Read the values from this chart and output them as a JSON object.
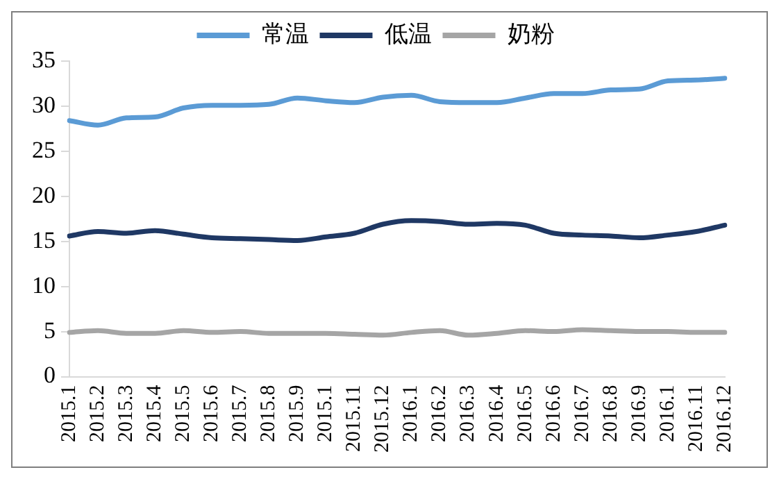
{
  "chart_data": {
    "type": "line",
    "categories": [
      "2015.1",
      "2015.2",
      "2015.3",
      "2015.4",
      "2015.5",
      "2015.6",
      "2015.7",
      "2015.8",
      "2015.9",
      "2015.1",
      "2015.11",
      "2015.12",
      "2016.1",
      "2016.2",
      "2016.3",
      "2016.4",
      "2016.5",
      "2016.6",
      "2016.7",
      "2016.8",
      "2016.9",
      "2016.1",
      "2016.11",
      "2016.12"
    ],
    "series": [
      {
        "name": "常温",
        "color": "#5b9bd5",
        "values": [
          28.4,
          27.9,
          28.7,
          28.8,
          29.8,
          30.1,
          30.1,
          30.2,
          30.9,
          30.6,
          30.4,
          31.0,
          31.2,
          30.5,
          30.4,
          30.4,
          30.9,
          31.4,
          31.4,
          31.8,
          31.9,
          32.8,
          32.9,
          33.1
        ]
      },
      {
        "name": "低温",
        "color": "#1f3864",
        "values": [
          15.6,
          16.1,
          15.9,
          16.2,
          15.8,
          15.4,
          15.3,
          15.2,
          15.1,
          15.5,
          15.9,
          16.9,
          17.3,
          17.2,
          16.9,
          17.0,
          16.8,
          15.9,
          15.7,
          15.6,
          15.4,
          15.7,
          16.1,
          16.8
        ]
      },
      {
        "name": "奶粉",
        "color": "#a5a5a5",
        "values": [
          4.9,
          5.1,
          4.8,
          4.8,
          5.1,
          4.9,
          5.0,
          4.8,
          4.8,
          4.8,
          4.7,
          4.6,
          4.9,
          5.1,
          4.6,
          4.8,
          5.1,
          5.0,
          5.2,
          5.1,
          5.0,
          5.0,
          4.9,
          4.9
        ]
      }
    ],
    "ylim": [
      0,
      35
    ],
    "yticks": [
      0,
      5,
      10,
      15,
      20,
      25,
      30,
      35
    ],
    "grid": false,
    "legend": "top",
    "marker": "none",
    "line_style": "solid"
  }
}
